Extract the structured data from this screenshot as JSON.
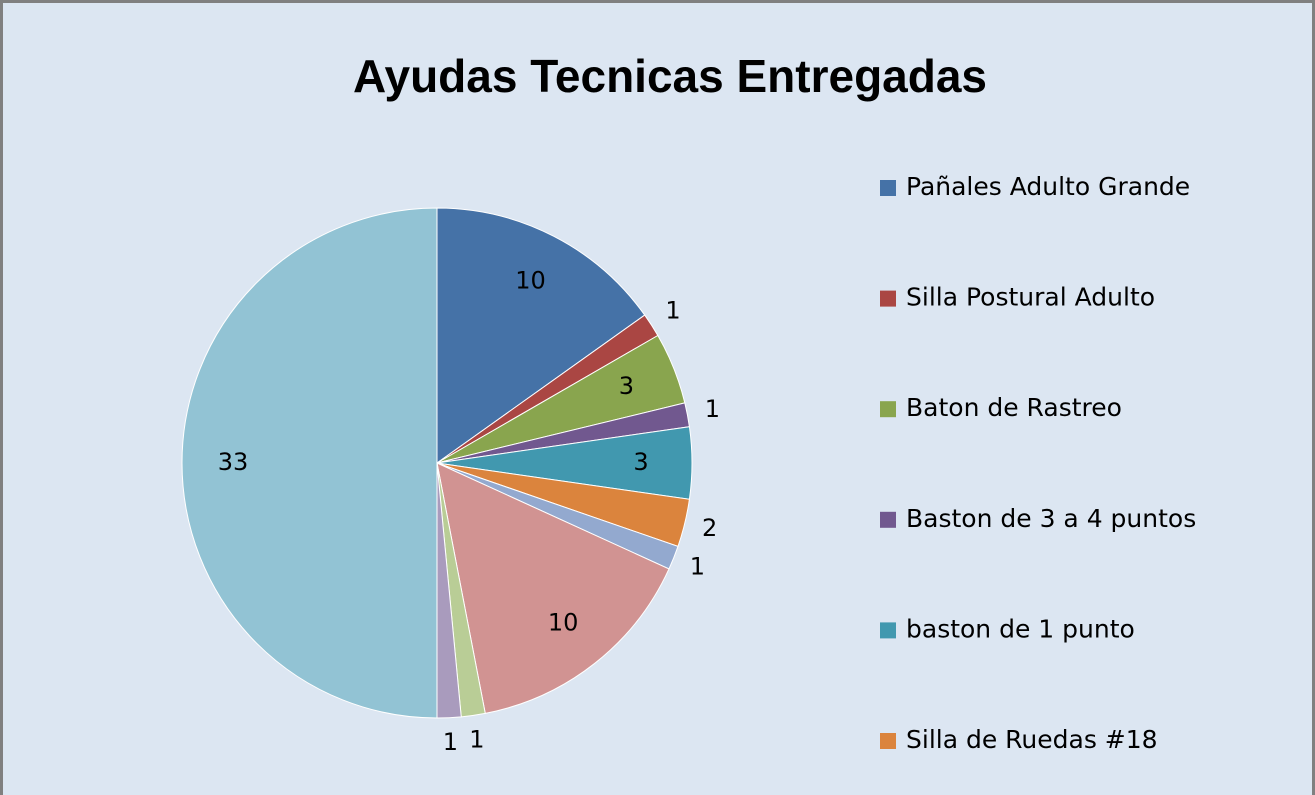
{
  "chart_data": {
    "type": "pie",
    "title": "Ayudas Tecnicas Entregadas",
    "categories": [
      "Pañales  Adulto Grande",
      "Silla Postural Adulto",
      "Baton de Rastreo",
      "Baston de 3 a 4 puntos",
      "baston de 1 punto",
      "Silla de Ruedas #18",
      null,
      null,
      null,
      null,
      null
    ],
    "values": [
      10,
      1,
      3,
      1,
      3,
      2,
      1,
      10,
      1,
      1,
      33
    ],
    "colors": [
      "#4572a7",
      "#aa4643",
      "#89a54e",
      "#71588f",
      "#4198af",
      "#db843d",
      "#93a9cf",
      "#d19392",
      "#b9cd96",
      "#a99bbd",
      "#92c3d4"
    ],
    "legend": "right"
  }
}
